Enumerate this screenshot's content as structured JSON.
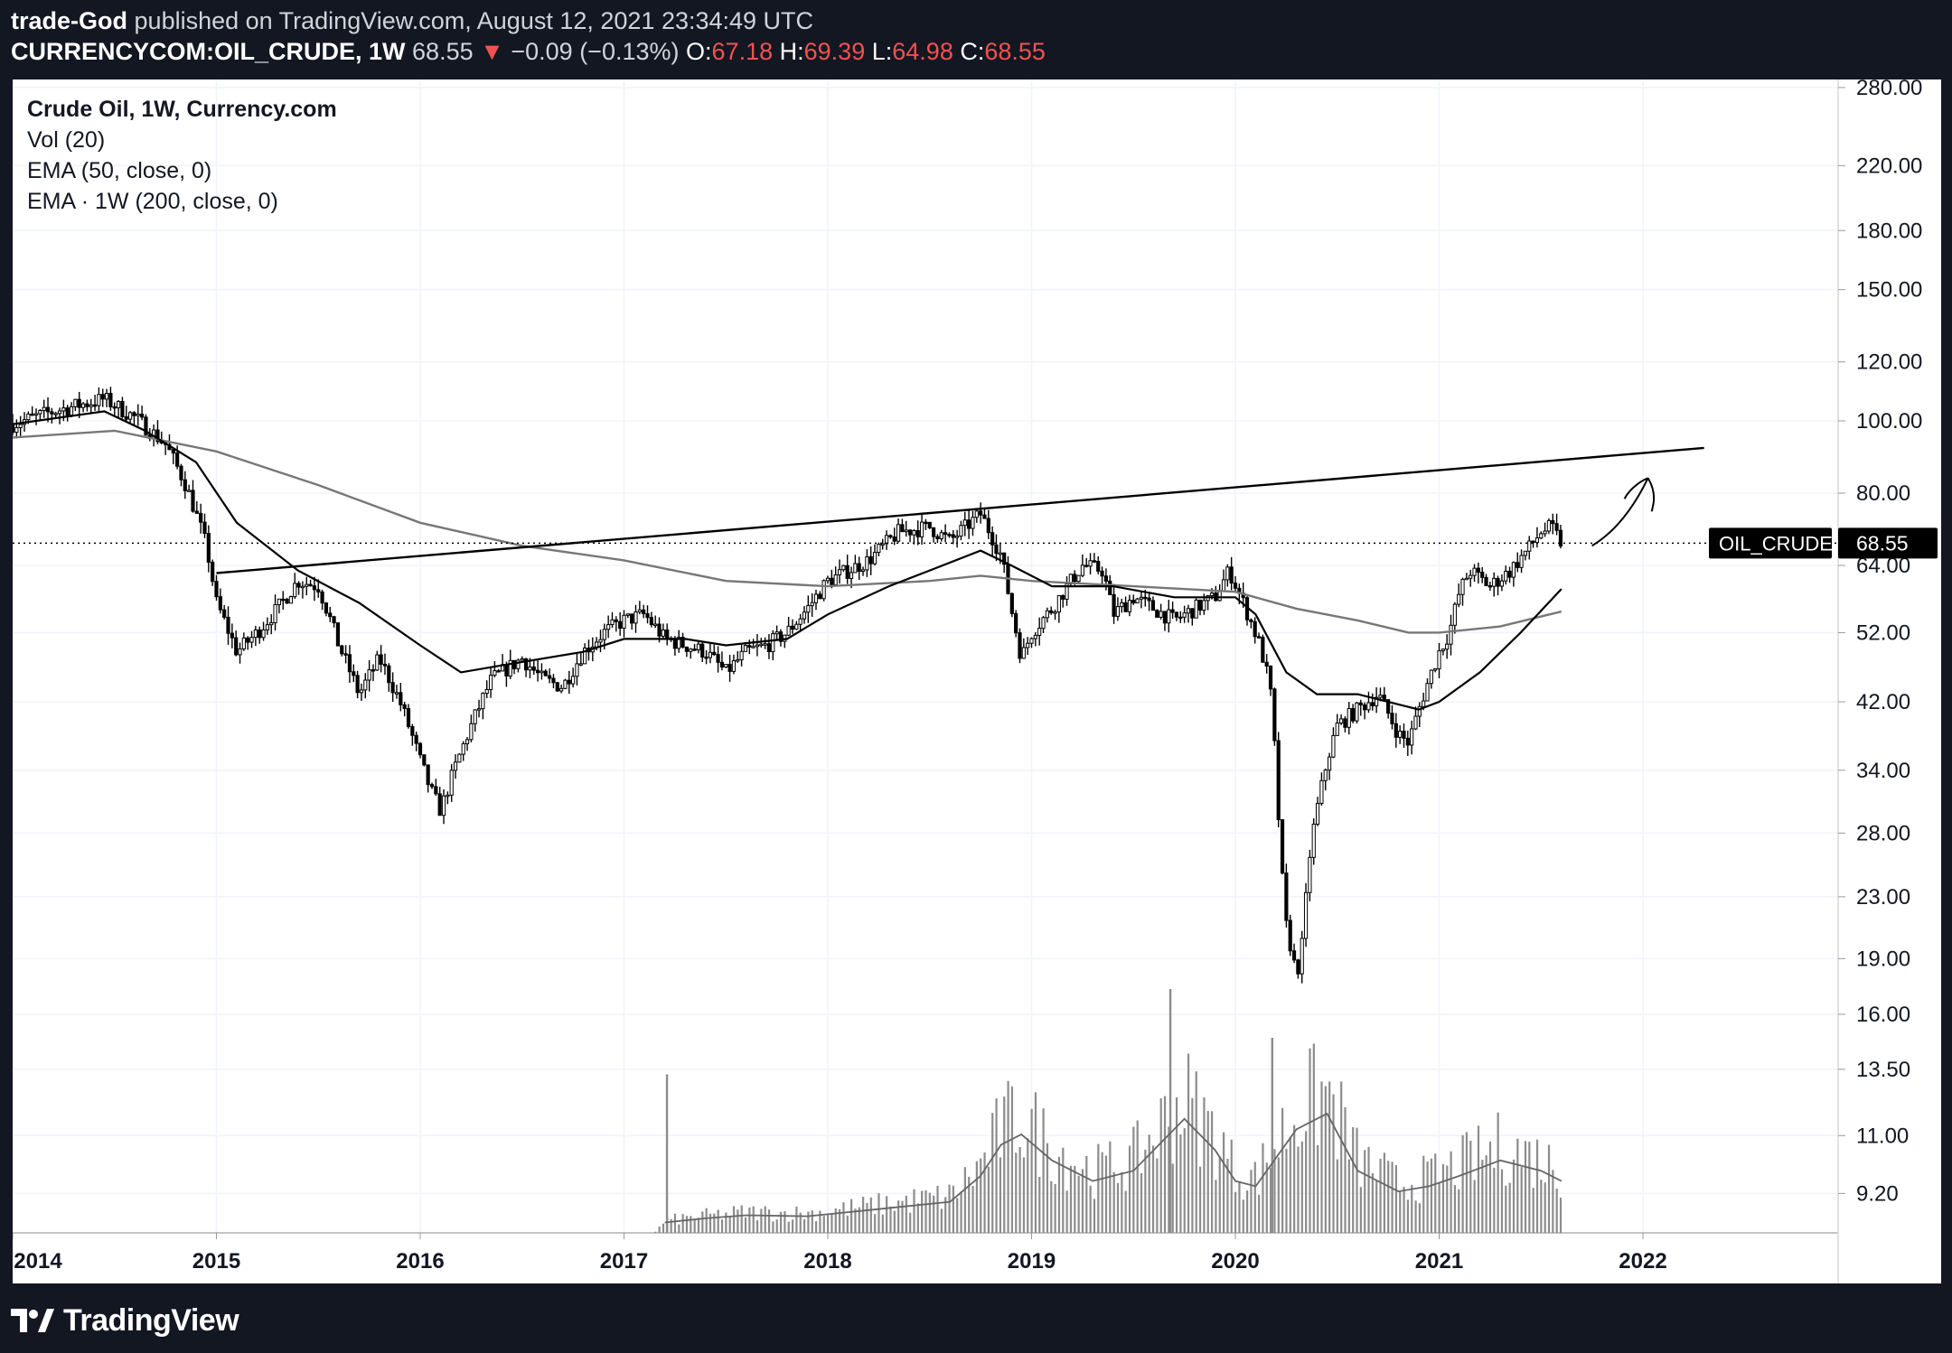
{
  "header": {
    "author": "trade-God",
    "published": "published on TradingView.com, August 12, 2021 23:34:49 UTC",
    "symbol": "CURRENCYCOM:OIL_CRUDE, 1W",
    "last": "68.55",
    "change": "−0.09 (−0.13%)",
    "o_label": "O:",
    "o": "67.18",
    "h_label": "H:",
    "h": "69.39",
    "l_label": "L:",
    "l": "64.98",
    "c_label": "C:",
    "c": "68.55"
  },
  "legend": {
    "title": "Crude Oil, 1W, Currency.com",
    "vol": "Vol (20)",
    "ema50": "EMA (50, close, 0)",
    "ema200": "EMA · 1W (200, close, 0)"
  },
  "price_label": {
    "name": "OIL_CRUDE",
    "value": "68.55"
  },
  "footer": {
    "brand": "TradingView"
  },
  "colors": {
    "background": "#131722",
    "panel": "#ffffff",
    "candles": "#000000",
    "ema50": "#000000",
    "ema200": "#777777",
    "volume": "#8c8c8c",
    "label_bg": "#000000"
  },
  "chart_data": {
    "type": "candlestick",
    "interval": "1W",
    "scale": "log",
    "y_ticks": [
      "280.00",
      "220.00",
      "180.00",
      "150.00",
      "120.00",
      "100.00",
      "80.00",
      "64.00",
      "52.00",
      "42.00",
      "34.00",
      "28.00",
      "23.00",
      "19.00",
      "16.00",
      "13.50",
      "11.00",
      "9.20"
    ],
    "x_ticks": [
      "2014",
      "2015",
      "2016",
      "2017",
      "2018",
      "2019",
      "2020",
      "2021",
      "2022"
    ],
    "close_path": [
      [
        2014.0,
        99
      ],
      [
        2014.2,
        103
      ],
      [
        2014.45,
        107
      ],
      [
        2014.6,
        101
      ],
      [
        2014.75,
        93
      ],
      [
        2014.85,
        82
      ],
      [
        2014.95,
        68
      ],
      [
        2015.0,
        57
      ],
      [
        2015.1,
        49
      ],
      [
        2015.2,
        52
      ],
      [
        2015.3,
        56
      ],
      [
        2015.4,
        61
      ],
      [
        2015.5,
        60
      ],
      [
        2015.6,
        50
      ],
      [
        2015.7,
        43
      ],
      [
        2015.8,
        48
      ],
      [
        2015.9,
        42
      ],
      [
        2016.0,
        35
      ],
      [
        2016.05,
        32
      ],
      [
        2016.1,
        30
      ],
      [
        2016.2,
        36
      ],
      [
        2016.35,
        45
      ],
      [
        2016.5,
        48
      ],
      [
        2016.6,
        45
      ],
      [
        2016.7,
        44
      ],
      [
        2016.8,
        49
      ],
      [
        2016.9,
        52
      ],
      [
        2017.0,
        54
      ],
      [
        2017.1,
        55
      ],
      [
        2017.2,
        51
      ],
      [
        2017.3,
        50
      ],
      [
        2017.4,
        49
      ],
      [
        2017.5,
        46
      ],
      [
        2017.6,
        49
      ],
      [
        2017.7,
        50
      ],
      [
        2017.8,
        52
      ],
      [
        2017.9,
        56
      ],
      [
        2018.0,
        61
      ],
      [
        2018.1,
        63
      ],
      [
        2018.2,
        65
      ],
      [
        2018.35,
        71
      ],
      [
        2018.5,
        72
      ],
      [
        2018.6,
        69
      ],
      [
        2018.75,
        75
      ],
      [
        2018.85,
        66
      ],
      [
        2018.9,
        56
      ],
      [
        2018.95,
        48
      ],
      [
        2019.0,
        52
      ],
      [
        2019.1,
        56
      ],
      [
        2019.25,
        64
      ],
      [
        2019.35,
        63
      ],
      [
        2019.4,
        55
      ],
      [
        2019.5,
        58
      ],
      [
        2019.6,
        56
      ],
      [
        2019.7,
        54
      ],
      [
        2019.8,
        56
      ],
      [
        2019.9,
        58
      ],
      [
        2019.97,
        63
      ],
      [
        2020.05,
        56
      ],
      [
        2020.12,
        50
      ],
      [
        2020.17,
        44
      ],
      [
        2020.2,
        34
      ],
      [
        2020.22,
        26
      ],
      [
        2020.25,
        21
      ],
      [
        2020.3,
        18
      ],
      [
        2020.33,
        20
      ],
      [
        2020.37,
        27
      ],
      [
        2020.45,
        35
      ],
      [
        2020.5,
        39
      ],
      [
        2020.6,
        41
      ],
      [
        2020.7,
        43
      ],
      [
        2020.8,
        38
      ],
      [
        2020.85,
        37
      ],
      [
        2020.9,
        41
      ],
      [
        2020.95,
        45
      ],
      [
        2021.0,
        49
      ],
      [
        2021.05,
        52
      ],
      [
        2021.1,
        59
      ],
      [
        2021.15,
        63
      ],
      [
        2021.25,
        60
      ],
      [
        2021.35,
        63
      ],
      [
        2021.45,
        68
      ],
      [
        2021.5,
        71
      ],
      [
        2021.55,
        72
      ],
      [
        2021.6,
        68.55
      ]
    ],
    "ema50_path": [
      [
        2014.0,
        99
      ],
      [
        2014.45,
        103
      ],
      [
        2014.65,
        97
      ],
      [
        2014.9,
        88
      ],
      [
        2015.1,
        73
      ],
      [
        2015.4,
        63
      ],
      [
        2015.7,
        57
      ],
      [
        2016.0,
        50
      ],
      [
        2016.2,
        46
      ],
      [
        2016.4,
        47
      ],
      [
        2016.8,
        49
      ],
      [
        2017.0,
        51
      ],
      [
        2017.3,
        51
      ],
      [
        2017.5,
        50
      ],
      [
        2017.8,
        51
      ],
      [
        2018.0,
        55
      ],
      [
        2018.3,
        60
      ],
      [
        2018.5,
        63
      ],
      [
        2018.75,
        67
      ],
      [
        2018.9,
        64
      ],
      [
        2019.1,
        60
      ],
      [
        2019.4,
        60
      ],
      [
        2019.7,
        58
      ],
      [
        2020.0,
        58
      ],
      [
        2020.1,
        55
      ],
      [
        2020.25,
        46
      ],
      [
        2020.4,
        43
      ],
      [
        2020.6,
        43
      ],
      [
        2020.9,
        41
      ],
      [
        2021.0,
        42
      ],
      [
        2021.2,
        46
      ],
      [
        2021.4,
        52
      ],
      [
        2021.6,
        59.5
      ]
    ],
    "ema200_path": [
      [
        2014.0,
        95
      ],
      [
        2014.5,
        97
      ],
      [
        2015.0,
        91
      ],
      [
        2015.5,
        82
      ],
      [
        2016.0,
        73
      ],
      [
        2016.5,
        68
      ],
      [
        2017.0,
        65
      ],
      [
        2017.5,
        61
      ],
      [
        2018.0,
        60
      ],
      [
        2018.5,
        61
      ],
      [
        2018.75,
        62
      ],
      [
        2019.0,
        61
      ],
      [
        2019.5,
        60
      ],
      [
        2020.0,
        59
      ],
      [
        2020.3,
        56
      ],
      [
        2020.6,
        54
      ],
      [
        2020.85,
        52
      ],
      [
        2021.0,
        52
      ],
      [
        2021.3,
        53
      ],
      [
        2021.6,
        55.5
      ]
    ],
    "volume_path": [
      [
        2014.0,
        0
      ],
      [
        2017.15,
        0
      ],
      [
        2017.2,
        1
      ],
      [
        2017.4,
        1.4
      ],
      [
        2017.6,
        1.7
      ],
      [
        2017.9,
        1.6
      ],
      [
        2018.2,
        2.2
      ],
      [
        2018.4,
        2.6
      ],
      [
        2018.6,
        3.0
      ],
      [
        2018.75,
        5.5
      ],
      [
        2018.85,
        8.5
      ],
      [
        2018.95,
        9.5
      ],
      [
        2019.1,
        7
      ],
      [
        2019.3,
        5
      ],
      [
        2019.5,
        6
      ],
      [
        2019.6,
        8
      ],
      [
        2019.75,
        11
      ],
      [
        2019.9,
        8
      ],
      [
        2020.0,
        5
      ],
      [
        2020.1,
        4.5
      ],
      [
        2020.3,
        10
      ],
      [
        2020.45,
        11.5
      ],
      [
        2020.6,
        6
      ],
      [
        2020.8,
        4
      ],
      [
        2020.95,
        4.5
      ],
      [
        2021.1,
        5.5
      ],
      [
        2021.3,
        7
      ],
      [
        2021.5,
        6
      ],
      [
        2021.6,
        5
      ]
    ],
    "volume_peaks": [
      [
        2017.21,
        13
      ],
      [
        2019.68,
        20
      ],
      [
        2020.18,
        16
      ]
    ],
    "annotations": {
      "trendline": [
        [
          2015.0,
          62.5
        ],
        [
          2022.3,
          92
        ]
      ],
      "last_price_line": 68.55,
      "arrow": "upward arrow drawn near 2021.75–2022.0"
    },
    "x_range": [
      2014.0,
      2022.9
    ],
    "y_range": [
      8.0,
      285.0
    ]
  }
}
